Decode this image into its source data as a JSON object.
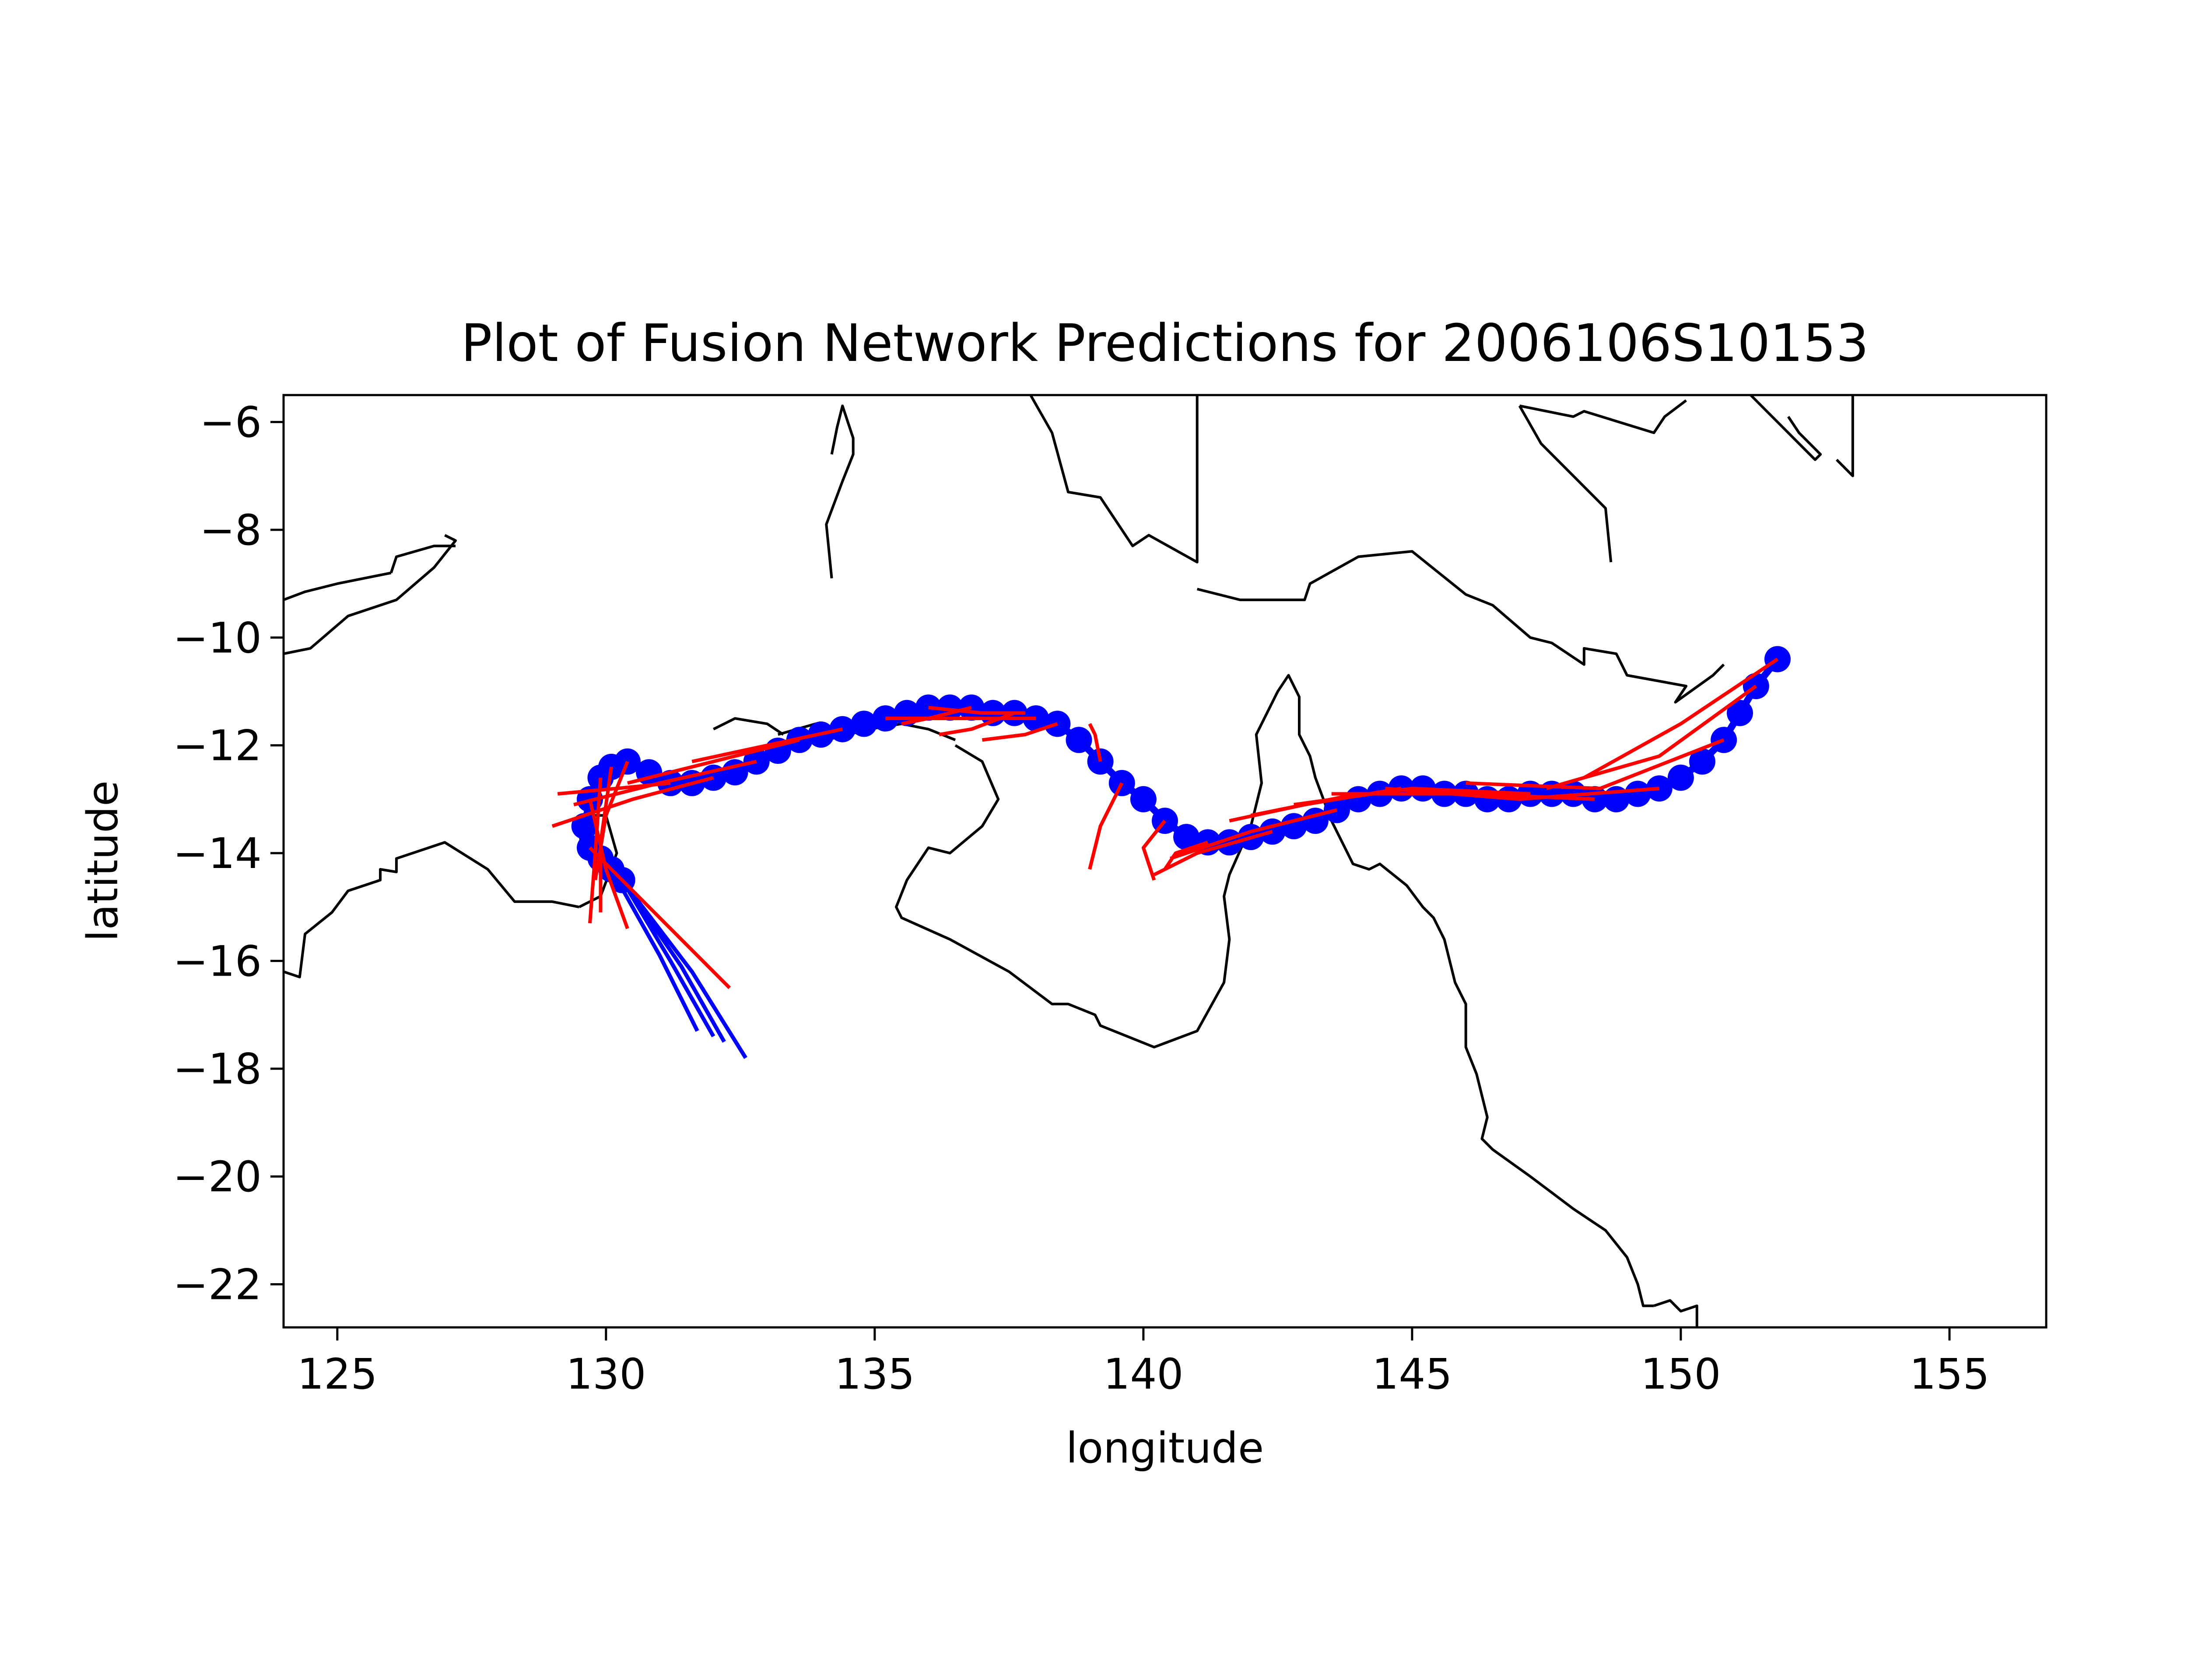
{
  "chart_data": {
    "type": "line",
    "title": "Plot of Fusion Network Predictions for 2006106S10153",
    "xlabel": "longitude",
    "ylabel": "latitude",
    "xlim": [
      124,
      156.8
    ],
    "ylim": [
      -22.8,
      -5.5
    ],
    "x_ticks": [
      125,
      130,
      135,
      140,
      145,
      150,
      155
    ],
    "y_ticks": [
      -6,
      -8,
      -10,
      -12,
      -14,
      -16,
      -18,
      -20,
      -22
    ],
    "x_tick_labels": [
      "125",
      "130",
      "135",
      "140",
      "145",
      "150",
      "155"
    ],
    "y_tick_labels": [
      "−6",
      "−8",
      "−10",
      "−12",
      "−14",
      "−16",
      "−18",
      "−20",
      "−22"
    ],
    "grid": false,
    "colors": {
      "observed": "#0000ff",
      "predicted": "#ff0000",
      "coastline": "#000000"
    },
    "observed_track": {
      "lon": [
        151.8,
        151.4,
        151.1,
        150.8,
        150.4,
        150.0,
        149.6,
        149.2,
        148.8,
        148.4,
        148.0,
        147.6,
        147.2,
        146.8,
        146.4,
        146.0,
        145.6,
        145.2,
        144.8,
        144.4,
        144.0,
        143.6,
        143.2,
        142.8,
        142.4,
        142.0,
        141.6,
        141.2,
        140.8,
        140.4,
        140.0,
        139.6,
        139.2,
        138.8,
        138.4,
        138.0,
        137.6,
        137.2,
        136.8,
        136.4,
        136.0,
        135.6,
        135.2,
        134.8,
        134.4,
        134.0,
        133.6,
        133.2,
        132.8,
        132.4,
        132.0,
        131.6,
        131.2,
        130.8,
        130.4,
        130.1,
        129.9,
        129.7,
        129.6,
        129.7,
        129.9,
        130.1,
        130.3
      ],
      "lat": [
        -10.4,
        -10.9,
        -11.4,
        -11.9,
        -12.3,
        -12.6,
        -12.8,
        -12.9,
        -13.0,
        -13.0,
        -12.9,
        -12.9,
        -12.9,
        -13.0,
        -13.0,
        -12.9,
        -12.9,
        -12.8,
        -12.8,
        -12.9,
        -13.0,
        -13.2,
        -13.4,
        -13.5,
        -13.6,
        -13.7,
        -13.8,
        -13.8,
        -13.7,
        -13.4,
        -13.0,
        -12.7,
        -12.3,
        -11.9,
        -11.6,
        -11.5,
        -11.4,
        -11.4,
        -11.3,
        -11.3,
        -11.3,
        -11.4,
        -11.5,
        -11.6,
        -11.7,
        -11.8,
        -11.9,
        -12.1,
        -12.3,
        -12.5,
        -12.6,
        -12.7,
        -12.7,
        -12.5,
        -12.3,
        -12.4,
        -12.6,
        -13.0,
        -13.5,
        -13.9,
        -14.1,
        -14.3,
        -14.5
      ]
    },
    "forecast_tracks": [
      {
        "lon": [
          151.8,
          150.0,
          148.2
        ],
        "lat": [
          -10.4,
          -11.6,
          -12.6
        ]
      },
      {
        "lon": [
          151.4,
          149.6,
          147.5
        ],
        "lat": [
          -10.9,
          -12.2,
          -12.8
        ]
      },
      {
        "lon": [
          150.8,
          148.5,
          146.0
        ],
        "lat": [
          -11.9,
          -12.8,
          -12.7
        ]
      },
      {
        "lon": [
          149.6,
          147.0,
          144.5
        ],
        "lat": [
          -12.8,
          -13.0,
          -12.8
        ]
      },
      {
        "lon": [
          148.4,
          146.0,
          143.5
        ],
        "lat": [
          -13.0,
          -12.9,
          -12.9
        ]
      },
      {
        "lon": [
          147.2,
          145.0,
          142.8
        ],
        "lat": [
          -12.9,
          -12.8,
          -13.1
        ]
      },
      {
        "lon": [
          146.0,
          144.0,
          142.0
        ],
        "lat": [
          -12.9,
          -12.9,
          -13.3
        ]
      },
      {
        "lon": [
          144.8,
          143.0,
          141.6
        ],
        "lat": [
          -12.8,
          -13.1,
          -13.4
        ]
      },
      {
        "lon": [
          143.6,
          142.0,
          140.5
        ],
        "lat": [
          -13.2,
          -13.6,
          -14.1
        ]
      },
      {
        "lon": [
          142.4,
          141.0,
          140.2
        ],
        "lat": [
          -13.6,
          -14.0,
          -14.4
        ]
      },
      {
        "lon": [
          141.2,
          140.6,
          140.4
        ],
        "lat": [
          -13.8,
          -14.0,
          -14.3
        ]
      },
      {
        "lon": [
          140.4,
          140.0,
          140.2
        ],
        "lat": [
          -13.4,
          -13.9,
          -14.5
        ]
      },
      {
        "lon": [
          139.6,
          139.2,
          139.0
        ],
        "lat": [
          -12.7,
          -13.5,
          -14.3
        ]
      },
      {
        "lon": [
          139.2,
          139.1,
          139.0
        ],
        "lat": [
          -12.3,
          -11.8,
          -11.6
        ]
      },
      {
        "lon": [
          138.4,
          137.8,
          137.0
        ],
        "lat": [
          -11.6,
          -11.8,
          -11.9
        ]
      },
      {
        "lon": [
          137.6,
          136.8,
          136.2
        ],
        "lat": [
          -11.4,
          -11.7,
          -11.8
        ]
      },
      {
        "lon": [
          136.8,
          136.0,
          135.5
        ],
        "lat": [
          -11.3,
          -11.5,
          -11.6
        ]
      },
      {
        "lon": [
          136.0,
          137.0,
          137.8
        ],
        "lat": [
          -11.3,
          -11.4,
          -11.4
        ]
      },
      {
        "lon": [
          135.2,
          136.5,
          138.0
        ],
        "lat": [
          -11.5,
          -11.5,
          -11.5
        ]
      },
      {
        "lon": [
          134.4,
          133.0,
          131.6
        ],
        "lat": [
          -11.7,
          -12.0,
          -12.3
        ]
      },
      {
        "lon": [
          133.6,
          132.0,
          130.4
        ],
        "lat": [
          -11.9,
          -12.3,
          -12.7
        ]
      },
      {
        "lon": [
          132.8,
          131.0,
          129.4
        ],
        "lat": [
          -12.3,
          -12.7,
          -13.1
        ]
      },
      {
        "lon": [
          132.0,
          130.5,
          129.0
        ],
        "lat": [
          -12.6,
          -13.0,
          -13.5
        ]
      },
      {
        "lon": [
          131.2,
          130.2,
          129.1
        ],
        "lat": [
          -12.7,
          -12.8,
          -12.9
        ]
      },
      {
        "lon": [
          130.4,
          130.0,
          129.8
        ],
        "lat": [
          -12.3,
          -13.3,
          -14.5
        ]
      },
      {
        "lon": [
          130.1,
          129.9,
          129.9
        ],
        "lat": [
          -12.4,
          -13.8,
          -15.1
        ]
      },
      {
        "lon": [
          129.9,
          129.8,
          129.7
        ],
        "lat": [
          -12.6,
          -14.0,
          -15.3
        ]
      },
      {
        "lon": [
          129.7,
          130.0,
          130.4
        ],
        "lat": [
          -13.0,
          -14.3,
          -15.4
        ]
      },
      {
        "lon": [
          129.7,
          131.0,
          132.3
        ],
        "lat": [
          -13.9,
          -15.2,
          -16.5
        ]
      }
    ],
    "observed_forecast_tails": [
      {
        "lon": [
          130.1,
          131.0,
          131.7
        ],
        "lat": [
          -14.3,
          -15.9,
          -17.3
        ]
      },
      {
        "lon": [
          130.3,
          131.2,
          132.0
        ],
        "lat": [
          -14.5,
          -16.0,
          -17.4
        ]
      },
      {
        "lon": [
          130.3,
          131.4,
          132.2
        ],
        "lat": [
          -14.5,
          -16.1,
          -17.5
        ]
      },
      {
        "lon": [
          130.3,
          131.6,
          132.6
        ],
        "lat": [
          -14.5,
          -16.2,
          -17.8
        ]
      }
    ],
    "coastlines": [
      {
        "lon": [
          124.0,
          124.4,
          125.0,
          126.0
        ],
        "lat": [
          -9.3,
          -9.15,
          -9.0,
          -8.8
        ]
      },
      {
        "lon": [
          124.0,
          124.5,
          125.2,
          126.1,
          126.8,
          127.2,
          127.0
        ],
        "lat": [
          -10.3,
          -10.2,
          -9.6,
          -9.3,
          -8.7,
          -8.2,
          -8.1
        ]
      },
      {
        "lon": [
          126.0,
          126.1,
          126.8,
          127.2
        ],
        "lat": [
          -8.8,
          -8.5,
          -8.3,
          -8.3
        ]
      },
      {
        "lon": [
          124.0,
          124.3,
          124.4,
          124.9,
          125.2,
          125.8,
          125.8,
          126.1,
          126.1,
          127.0,
          127.8,
          128.3,
          129.0,
          129.5
        ],
        "lat": [
          -16.2,
          -16.3,
          -15.5,
          -15.1,
          -14.7,
          -14.5,
          -14.3,
          -14.35,
          -14.1,
          -13.8,
          -14.3,
          -14.9,
          -14.9,
          -15.0
        ]
      },
      {
        "lon": [
          129.5,
          129.9,
          130.2,
          130.0,
          129.7,
          129.5,
          129.6
        ],
        "lat": [
          -15.0,
          -14.8,
          -14.0,
          -13.3,
          -13.3,
          -13.6,
          -14.1
        ]
      },
      {
        "lon": [
          134.2,
          134.1,
          134.4,
          134.6,
          134.6,
          134.4,
          134.3,
          134.2
        ],
        "lat": [
          -8.9,
          -7.9,
          -7.1,
          -6.6,
          -6.3,
          -5.7,
          -6.1,
          -6.6
        ]
      },
      {
        "lon": [
          133.2,
          133.9,
          134.1,
          134.9,
          135.5,
          136.0,
          136.5
        ],
        "lat": [
          -11.8,
          -11.6,
          -11.9,
          -11.7,
          -11.6,
          -11.7,
          -11.9
        ]
      },
      {
        "lon": [
          136.5,
          137.0,
          137.3,
          137.0,
          136.4,
          136.0,
          135.6,
          135.4,
          135.5,
          136.4,
          137.5,
          138.3,
          138.6,
          139.1,
          139.2,
          140.2,
          141.0,
          141.5,
          141.6,
          141.5,
          141.6,
          142.0,
          142.2,
          142.1,
          142.5,
          142.7,
          142.9,
          142.9,
          143.1,
          143.2,
          143.5,
          143.9,
          144.2,
          144.4,
          144.9,
          145.2,
          145.4,
          145.6,
          145.8,
          146.0,
          146.0,
          146.2,
          146.4,
          146.3,
          146.5,
          147.2,
          148.0,
          148.6,
          149.0,
          149.2,
          149.3,
          149.5
        ],
        "lat": [
          -12.0,
          -12.3,
          -13.0,
          -13.5,
          -14.0,
          -13.9,
          -14.5,
          -15.0,
          -15.2,
          -15.6,
          -16.2,
          -16.8,
          -16.8,
          -17.0,
          -17.2,
          -17.6,
          -17.3,
          -16.4,
          -15.6,
          -14.8,
          -14.4,
          -13.5,
          -12.7,
          -11.8,
          -11.0,
          -10.7,
          -11.1,
          -11.8,
          -12.2,
          -12.6,
          -13.4,
          -14.2,
          -14.3,
          -14.2,
          -14.6,
          -15.0,
          -15.2,
          -15.6,
          -16.4,
          -16.8,
          -17.6,
          -18.1,
          -18.9,
          -19.3,
          -19.5,
          -20.0,
          -20.6,
          -21.0,
          -21.5,
          -22.0,
          -22.4,
          -22.4
        ]
      },
      {
        "lon": [
          149.5,
          149.8,
          150.0,
          150.3,
          150.3
        ],
        "lat": [
          -22.4,
          -22.3,
          -22.5,
          -22.4,
          -22.8
        ]
      },
      {
        "lon": [
          132.0,
          132.4,
          133.0,
          133.3
        ],
        "lat": [
          -11.7,
          -11.5,
          -11.6,
          -11.8
        ]
      },
      {
        "lon": [
          137.9,
          138.3,
          138.6,
          139.2,
          139.8,
          140.1,
          141.0,
          141.0
        ],
        "lat": [
          -5.5,
          -6.2,
          -7.3,
          -7.4,
          -8.3,
          -8.1,
          -8.6,
          -5.5
        ]
      },
      {
        "lon": [
          141.0,
          141.8,
          142.4,
          143.0,
          143.1,
          144.0,
          145.0,
          146.0,
          146.5,
          147.2,
          147.6,
          148.2,
          148.2,
          148.8,
          149.0,
          150.1,
          149.9,
          150.6,
          150.8
        ],
        "lat": [
          -9.1,
          -9.3,
          -9.3,
          -9.3,
          -9.0,
          -8.5,
          -8.4,
          -9.2,
          -9.4,
          -10.0,
          -10.1,
          -10.5,
          -10.2,
          -10.3,
          -10.7,
          -10.9,
          -11.2,
          -10.7,
          -10.5
        ]
      },
      {
        "lon": [
          147.0,
          147.4,
          148.0,
          148.6,
          148.7
        ],
        "lat": [
          -5.7,
          -6.4,
          -7.0,
          -7.6,
          -8.6
        ]
      },
      {
        "lon": [
          147.0,
          148.0,
          148.2,
          149.5,
          149.7,
          150.1
        ],
        "lat": [
          -5.7,
          -5.9,
          -5.8,
          -6.2,
          -5.9,
          -5.6
        ]
      },
      {
        "lon": [
          151.3,
          151.6,
          152.5,
          152.6,
          152.2,
          152.0
        ],
        "lat": [
          -5.5,
          -5.8,
          -6.7,
          -6.6,
          -6.2,
          -5.9
        ]
      },
      {
        "lon": [
          152.9,
          153.2,
          153.2
        ],
        "lat": [
          -6.7,
          -7.0,
          -5.5
        ]
      }
    ]
  }
}
